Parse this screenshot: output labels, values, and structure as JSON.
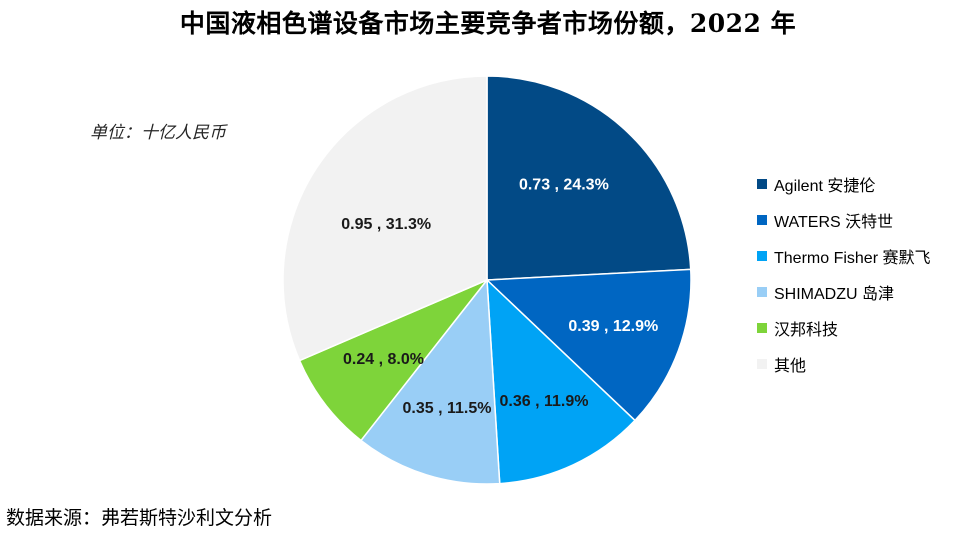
{
  "title": "中国液相色谱设备市场主要竞争者市场份额，2022 年",
  "unit_note": "单位：十亿人民币",
  "source_note": "数据来源：弗若斯特沙利文分析",
  "chart_data": {
    "type": "pie",
    "title": "中国液相色谱设备市场主要竞争者市场份额，2022 年",
    "unit": "十亿人民币",
    "legend_position": "right",
    "slices": [
      {
        "name": "Agilent 安捷伦",
        "value": 0.73,
        "percent": 24.3,
        "label": "0.73 , 24.3%",
        "color": "#024A86",
        "label_color": "#FFFFFF"
      },
      {
        "name": "WATERS 沃特世",
        "value": 0.39,
        "percent": 12.9,
        "label": "0.39 , 12.9%",
        "color": "#0066C2",
        "label_color": "#FFFFFF"
      },
      {
        "name": "Thermo Fisher 赛默飞",
        "value": 0.36,
        "percent": 11.9,
        "label": "0.36 , 11.9%",
        "color": "#00A3F5",
        "label_color": "#1A1A1A"
      },
      {
        "name": "SHIMADZU 岛津",
        "value": 0.35,
        "percent": 11.5,
        "label": "0.35 , 11.5%",
        "color": "#99CEF6",
        "label_color": "#1A1A1A"
      },
      {
        "name": "汉邦科技",
        "value": 0.24,
        "percent": 8.0,
        "label": "0.24 , 8.0%",
        "color": "#7ED43A",
        "label_color": "#1A1A1A"
      },
      {
        "name": "其他",
        "value": 0.95,
        "percent": 31.3,
        "label": "0.95 , 31.3%",
        "color": "#F2F2F2",
        "label_color": "#1A1A1A"
      }
    ]
  }
}
